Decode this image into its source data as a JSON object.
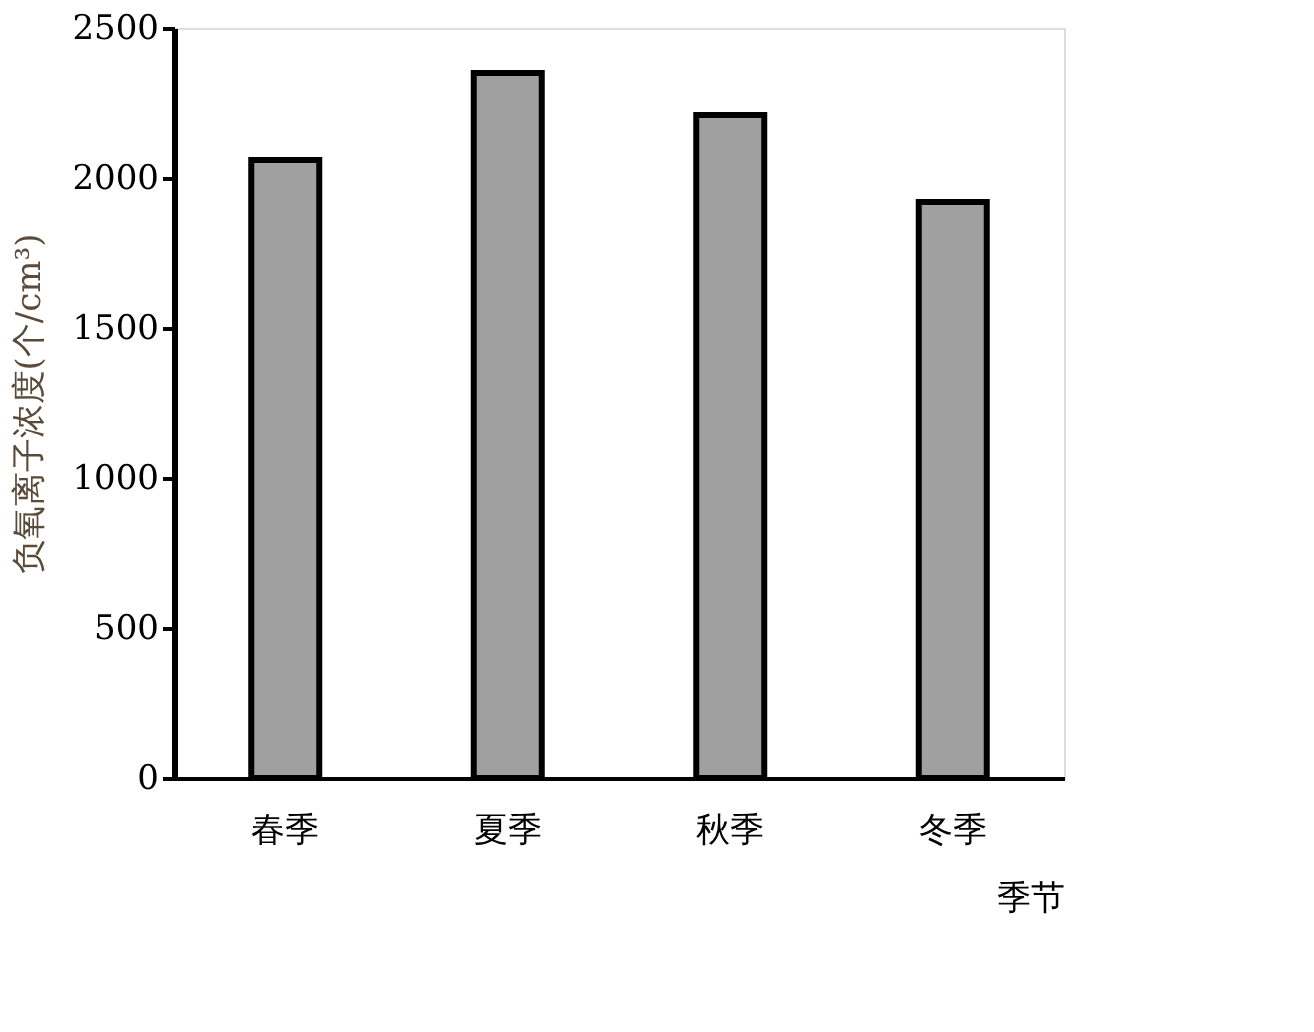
{
  "chart_data": {
    "type": "bar",
    "xlabel": "季节",
    "ylabel": "负氧离子浓度(个/cm³)",
    "categories": [
      "春季",
      "夏季",
      "秋季",
      "冬季"
    ],
    "values": [
      2060,
      2350,
      2210,
      1920
    ],
    "color": "#a0a0a0",
    "ylim": [
      0,
      2500
    ],
    "yticks": [
      0,
      500,
      1000,
      1500,
      2000,
      2500
    ],
    "grid": false
  }
}
